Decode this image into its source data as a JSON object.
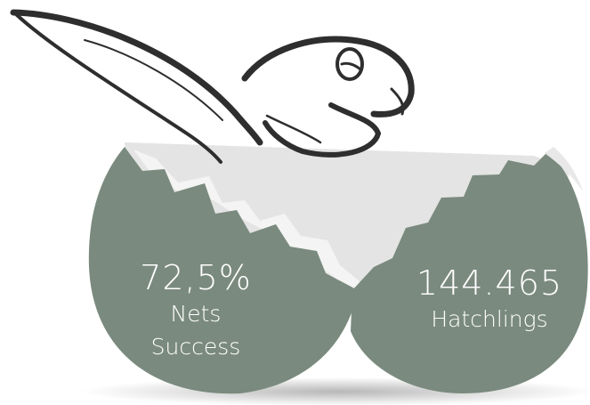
{
  "stats": [
    {
      "value": "72,5%",
      "label": "Nets Success"
    },
    {
      "value": "144.465",
      "label": "Hatchlings"
    }
  ]
}
